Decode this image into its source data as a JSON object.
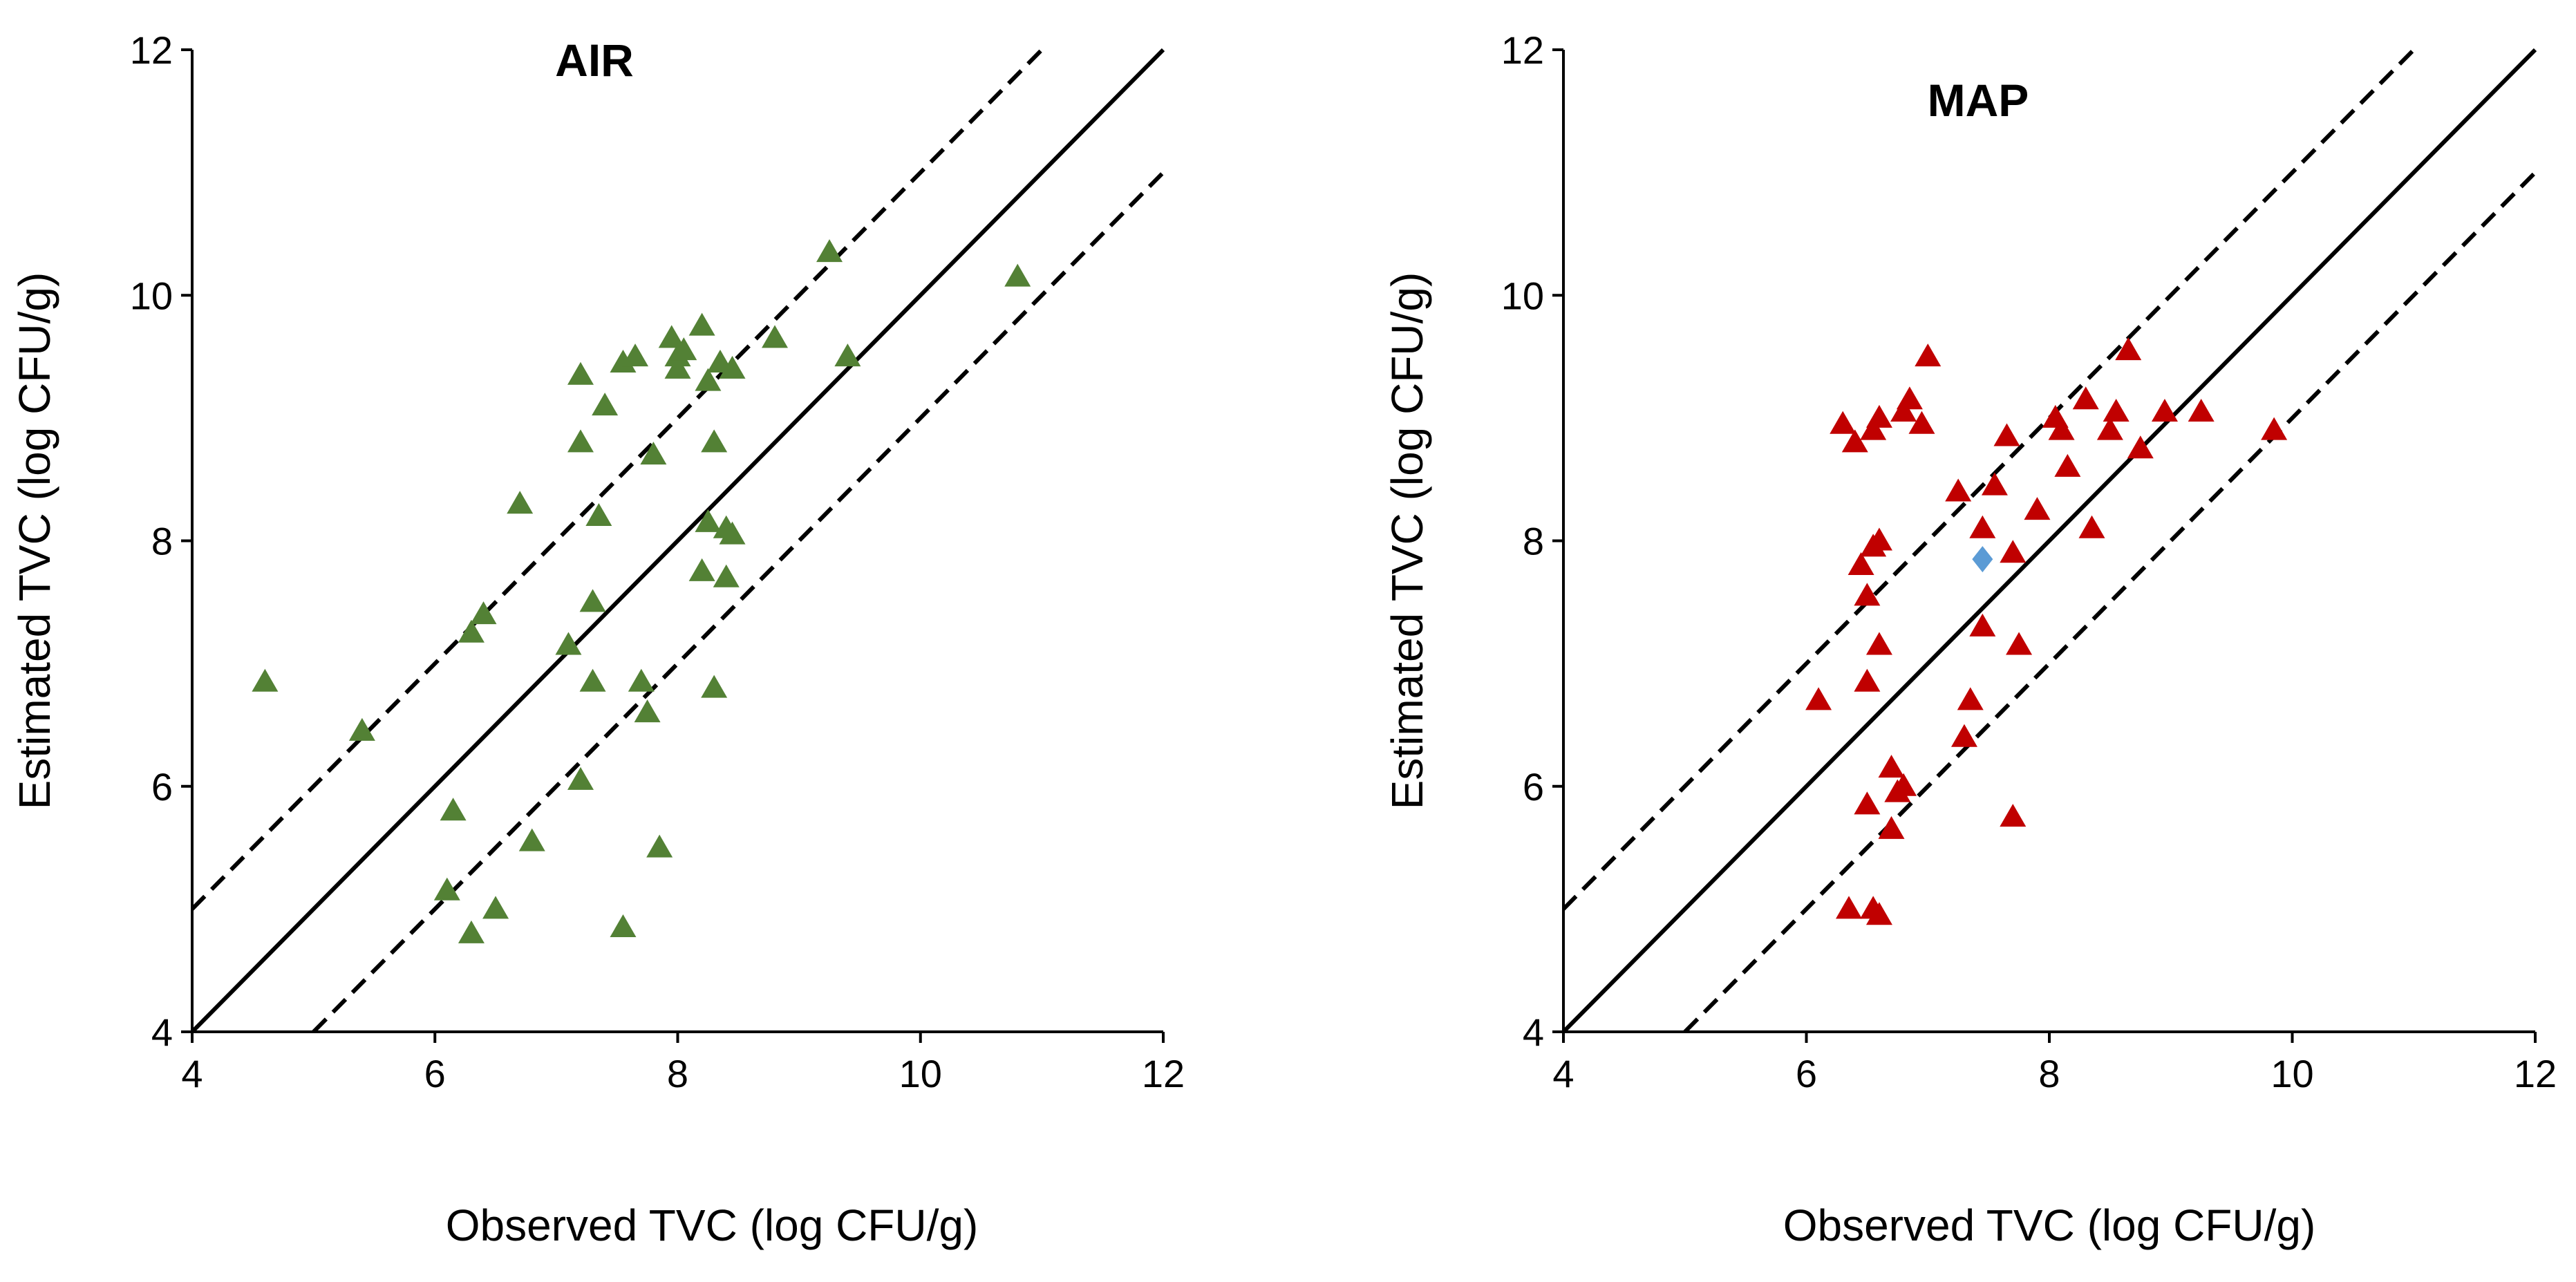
{
  "chart_data": [
    {
      "type": "scatter",
      "title": "AIR",
      "xlabel": "Observed TVC (log CFU/g)",
      "ylabel": "Estimated TVC (log CFU/g)",
      "xlim": [
        4,
        12
      ],
      "ylim": [
        4,
        12
      ],
      "xticks": [
        4,
        6,
        8,
        10,
        12
      ],
      "yticks": [
        4,
        6,
        8,
        10,
        12
      ],
      "marker": "triangle",
      "marker_color": "#538135",
      "reference_lines": [
        {
          "name": "line of equality",
          "style": "solid",
          "offset": 0
        },
        {
          "name": "upper bound",
          "style": "dashed",
          "offset": 1
        },
        {
          "name": "lower bound",
          "style": "dashed",
          "offset": -1
        }
      ],
      "series": [
        {
          "name": "AIR",
          "points": [
            [
              4.6,
              6.85
            ],
            [
              5.4,
              6.45
            ],
            [
              6.1,
              5.15
            ],
            [
              6.15,
              5.8
            ],
            [
              6.3,
              4.8
            ],
            [
              6.3,
              7.25
            ],
            [
              6.4,
              7.4
            ],
            [
              6.5,
              5.0
            ],
            [
              6.7,
              8.3
            ],
            [
              6.8,
              5.55
            ],
            [
              7.1,
              7.15
            ],
            [
              7.2,
              9.35
            ],
            [
              7.2,
              8.8
            ],
            [
              7.2,
              6.05
            ],
            [
              7.3,
              6.85
            ],
            [
              7.3,
              7.5
            ],
            [
              7.35,
              8.2
            ],
            [
              7.4,
              9.1
            ],
            [
              7.55,
              9.45
            ],
            [
              7.55,
              4.85
            ],
            [
              7.65,
              9.5
            ],
            [
              7.7,
              6.85
            ],
            [
              7.75,
              6.6
            ],
            [
              7.8,
              8.7
            ],
            [
              7.85,
              5.5
            ],
            [
              7.95,
              9.65
            ],
            [
              8.0,
              9.5
            ],
            [
              8.0,
              9.4
            ],
            [
              8.05,
              9.55
            ],
            [
              8.2,
              9.75
            ],
            [
              8.2,
              7.75
            ],
            [
              8.25,
              9.3
            ],
            [
              8.25,
              8.15
            ],
            [
              8.3,
              8.8
            ],
            [
              8.3,
              6.8
            ],
            [
              8.35,
              9.45
            ],
            [
              8.4,
              8.1
            ],
            [
              8.4,
              7.7
            ],
            [
              8.45,
              8.05
            ],
            [
              8.45,
              9.4
            ],
            [
              8.8,
              9.65
            ],
            [
              9.25,
              10.35
            ],
            [
              9.4,
              9.5
            ],
            [
              10.8,
              10.15
            ]
          ]
        }
      ]
    },
    {
      "type": "scatter",
      "title": "MAP",
      "xlabel": "Observed TVC (log CFU/g)",
      "ylabel": "Estimated TVC (log CFU/g)",
      "xlim": [
        4,
        12
      ],
      "ylim": [
        4,
        12
      ],
      "xticks": [
        4,
        6,
        8,
        10,
        12
      ],
      "yticks": [
        4,
        6,
        8,
        10,
        12
      ],
      "marker": "triangle",
      "marker_color": "#C00000",
      "reference_lines": [
        {
          "name": "line of equality",
          "style": "solid",
          "offset": 0
        },
        {
          "name": "upper bound",
          "style": "dashed",
          "offset": 1
        },
        {
          "name": "lower bound",
          "style": "dashed",
          "offset": -1
        }
      ],
      "series": [
        {
          "name": "MAP",
          "points": [
            [
              6.1,
              6.7
            ],
            [
              6.3,
              8.95
            ],
            [
              6.35,
              5.0
            ],
            [
              6.4,
              8.8
            ],
            [
              6.45,
              7.8
            ],
            [
              6.5,
              5.85
            ],
            [
              6.5,
              6.85
            ],
            [
              6.5,
              7.55
            ],
            [
              6.55,
              5.0
            ],
            [
              6.55,
              7.95
            ],
            [
              6.55,
              8.9
            ],
            [
              6.6,
              4.95
            ],
            [
              6.6,
              7.15
            ],
            [
              6.6,
              9.0
            ],
            [
              6.6,
              8.0
            ],
            [
              6.7,
              6.15
            ],
            [
              6.7,
              5.65
            ],
            [
              6.75,
              5.95
            ],
            [
              6.8,
              6.0
            ],
            [
              6.8,
              9.05
            ],
            [
              6.85,
              9.15
            ],
            [
              6.95,
              8.95
            ],
            [
              7.0,
              9.5
            ],
            [
              7.25,
              8.4
            ],
            [
              7.3,
              6.4
            ],
            [
              7.35,
              6.7
            ],
            [
              7.45,
              7.3
            ],
            [
              7.45,
              8.1
            ],
            [
              7.55,
              8.45
            ],
            [
              7.65,
              8.85
            ],
            [
              7.7,
              7.9
            ],
            [
              7.7,
              5.75
            ],
            [
              7.75,
              7.15
            ],
            [
              7.9,
              8.25
            ],
            [
              8.05,
              9.0
            ],
            [
              8.1,
              8.9
            ],
            [
              8.15,
              8.6
            ],
            [
              8.3,
              9.15
            ],
            [
              8.35,
              8.1
            ],
            [
              8.5,
              8.9
            ],
            [
              8.55,
              9.05
            ],
            [
              8.65,
              9.55
            ],
            [
              8.75,
              8.75
            ],
            [
              8.95,
              9.05
            ],
            [
              9.25,
              9.05
            ],
            [
              9.85,
              8.9
            ]
          ]
        },
        {
          "name": "MAP (highlighted)",
          "marker": "diamond",
          "marker_color": "#5B9BD5",
          "points": [
            [
              7.45,
              7.85
            ]
          ]
        }
      ]
    }
  ]
}
